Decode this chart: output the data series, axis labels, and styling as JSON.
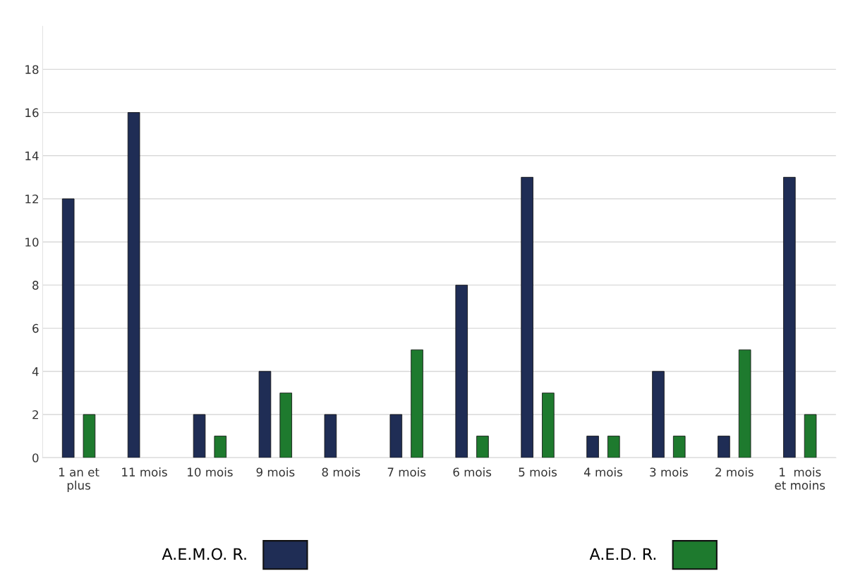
{
  "chart_data": {
    "type": "bar",
    "categories": [
      "1 an et\nplus",
      "11 mois",
      "10 mois",
      "9 mois",
      "8 mois",
      "7 mois",
      "6 mois",
      "5 mois",
      "4 mois",
      "3 mois",
      "2 mois",
      "1  mois\net moins"
    ],
    "series": [
      {
        "name": "A.E.M.O. R.",
        "color": "#1f2d55",
        "values": [
          12,
          16,
          2,
          4,
          2,
          2,
          8,
          13,
          1,
          4,
          1,
          13
        ]
      },
      {
        "name": "A.E.D. R.",
        "color": "#1e7a2e",
        "values": [
          2,
          null,
          1,
          3,
          null,
          5,
          1,
          3,
          1,
          1,
          5,
          2
        ]
      }
    ],
    "ylim": [
      0,
      20
    ],
    "yticks": [
      0,
      2,
      4,
      6,
      8,
      10,
      12,
      14,
      16,
      18
    ],
    "grid": "y",
    "legend": "bottom"
  }
}
